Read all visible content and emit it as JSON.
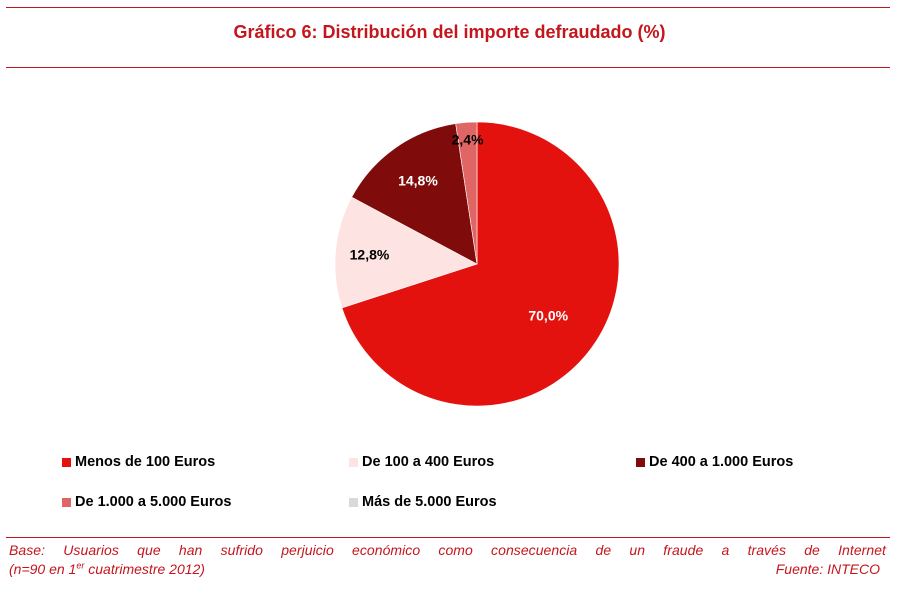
{
  "chart_data": {
    "type": "pie",
    "title": "Gráfico 6: Distribución del importe defraudado (%)",
    "slices": [
      {
        "label": "Menos de 100 Euros",
        "value": 70.0,
        "display": "70,0%",
        "color": "#e3120f",
        "label_color": "#ffffff"
      },
      {
        "label": "De 100 a 400 Euros",
        "value": 12.8,
        "display": "12,8%",
        "color": "#fde3e1",
        "label_color": "#000000"
      },
      {
        "label": "De 400 a 1.000 Euros",
        "value": 14.8,
        "display": "14,8%",
        "color": "#7f0b0b",
        "label_color": "#ffffff"
      },
      {
        "label": "De 1.000 a 5.000 Euros",
        "value": 2.4,
        "display": "2,4%",
        "color": "#e06666",
        "label_color": "#000000"
      },
      {
        "label": "Más de 5.000 Euros",
        "value": 0.0,
        "display": "",
        "color": "#d9d9d9",
        "label_color": "#000000"
      }
    ],
    "start": "12 o'clock",
    "direction": "clockwise",
    "legend_position": "bottom"
  },
  "footer": {
    "base_line": "Base: Usuarios que han sufrido perjuicio económico como consecuencia de un fraude a través de Internet",
    "sample_prefix": "(n=90 en 1",
    "sample_sup": "er",
    "sample_suffix": " cuatrimestre 2012)",
    "source": "Fuente: INTECO"
  },
  "colors": {
    "accent": "#c4161c"
  }
}
